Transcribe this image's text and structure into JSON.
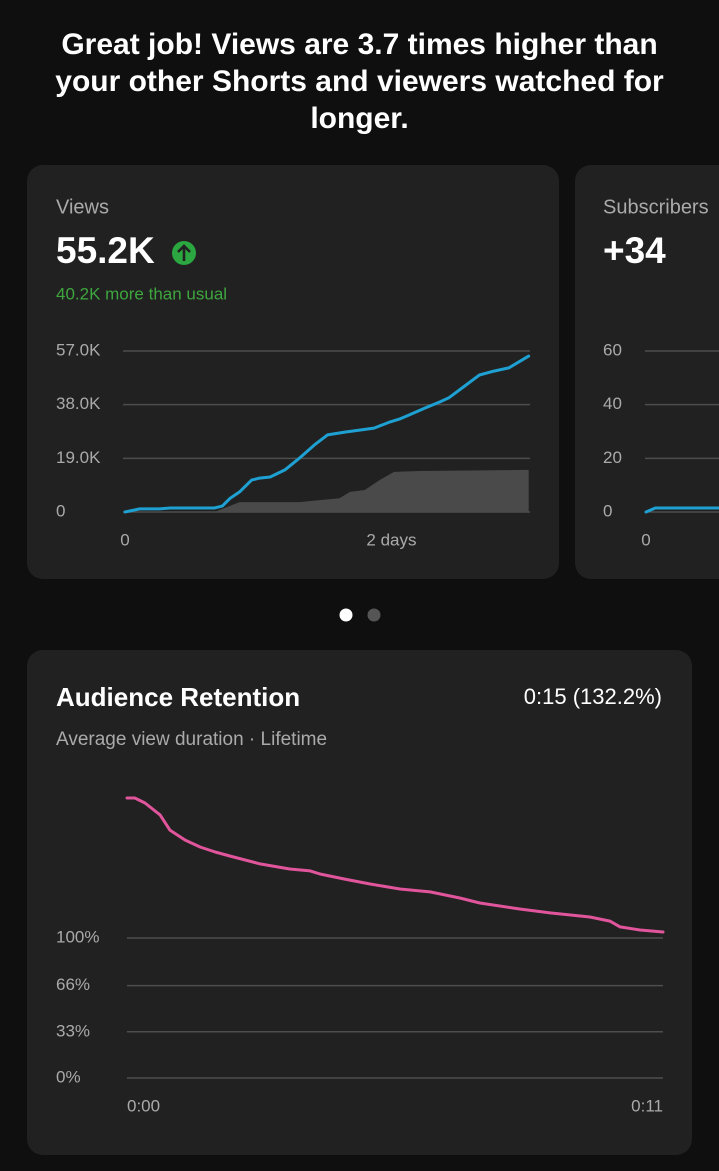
{
  "headline": "Great job! Views are 3.7 times higher than your other Shorts and viewers watched for longer.",
  "views_card": {
    "label": "Views",
    "value": "55.2K",
    "delta": "40.2K more than usual"
  },
  "subscribers_card": {
    "label": "Subscribers",
    "value": "+34"
  },
  "retention_card": {
    "title": "Audience Retention",
    "subtitle": "Average view duration · Lifetime",
    "summary": "0:15 (132.2%)"
  },
  "chart_data": [
    {
      "type": "line",
      "xlim": [
        0,
        3.04
      ],
      "xticks": [
        0,
        {
          "value": 2,
          "label": "2 days"
        }
      ],
      "ylim": [
        0,
        57000
      ],
      "yticks": [
        0,
        {
          "value": 19000,
          "label": "19.0K"
        },
        {
          "value": 38000,
          "label": "38.0K"
        },
        {
          "value": 57000,
          "label": "57.0K"
        }
      ],
      "grid": true,
      "series": [
        {
          "type": "area",
          "color": "#4a4a4a",
          "x": [
            0,
            0.67,
            0.86,
            1.31,
            1.46,
            1.61,
            1.69,
            1.8,
            1.91,
            2.02,
            2.21,
            3.03
          ],
          "values": [
            0,
            0,
            3500,
            3500,
            4200,
            4900,
            7100,
            7800,
            11300,
            14200,
            14500,
            14900
          ]
        },
        {
          "type": "line",
          "color": "#1ea1d2",
          "x": [
            0,
            0.11,
            0.26,
            0.34,
            0.67,
            0.73,
            0.79,
            0.86,
            0.95,
            1.01,
            1.09,
            1.2,
            1.31,
            1.42,
            1.52,
            1.65,
            1.76,
            1.87,
            1.99,
            2.06,
            2.13,
            2.25,
            2.36,
            2.43,
            2.55,
            2.66,
            2.77,
            2.88,
            3.03
          ],
          "values": [
            0,
            1100,
            1100,
            1400,
            1400,
            2100,
            4900,
            7100,
            11300,
            12000,
            12400,
            14900,
            19100,
            23700,
            27300,
            28300,
            29000,
            29700,
            31900,
            32900,
            34300,
            36800,
            38900,
            40400,
            44600,
            48500,
            49900,
            51000,
            55200
          ]
        }
      ]
    },
    {
      "type": "line",
      "xlim": [
        0,
        3.04
      ],
      "xticks": [
        0
      ],
      "ylim": [
        0,
        60
      ],
      "yticks": [
        0,
        20,
        40,
        60
      ],
      "grid": true,
      "series": [
        {
          "type": "line",
          "color": "#1ea1d2",
          "x": [
            0,
            0.07,
            0.55
          ],
          "values": [
            0,
            1.5,
            1.5
          ]
        }
      ]
    },
    {
      "type": "line",
      "xlim": [
        0,
        11
      ],
      "xticks": [
        {
          "value": 0,
          "label": "0:00"
        },
        {
          "value": 11,
          "label": "0:11"
        }
      ],
      "ylim": [
        0,
        200
      ],
      "yticks": [
        {
          "value": 0,
          "label": "0%"
        },
        {
          "value": 33,
          "label": "33%"
        },
        {
          "value": 66,
          "label": "66%"
        },
        {
          "value": 100,
          "label": "100%"
        }
      ],
      "grid": true,
      "series": [
        {
          "type": "line",
          "color": "#e0559b",
          "x": [
            0,
            0.16,
            0.37,
            0.68,
            0.88,
            1.19,
            1.5,
            1.81,
            2.11,
            2.73,
            3.34,
            3.76,
            3.96,
            4.47,
            4.99,
            5.6,
            6.22,
            6.83,
            7.24,
            8.06,
            8.68,
            9.5,
            9.91,
            10.12,
            10.53,
            11
          ],
          "values": [
            200,
            200,
            196.4,
            187.9,
            177.1,
            170,
            165,
            161.4,
            158.6,
            152.9,
            149.3,
            147.9,
            145.7,
            142.1,
            138.6,
            135,
            132.9,
            128.6,
            125,
            120.7,
            117.9,
            115,
            112.1,
            107.9,
            105.7,
            104.3
          ]
        }
      ]
    }
  ]
}
